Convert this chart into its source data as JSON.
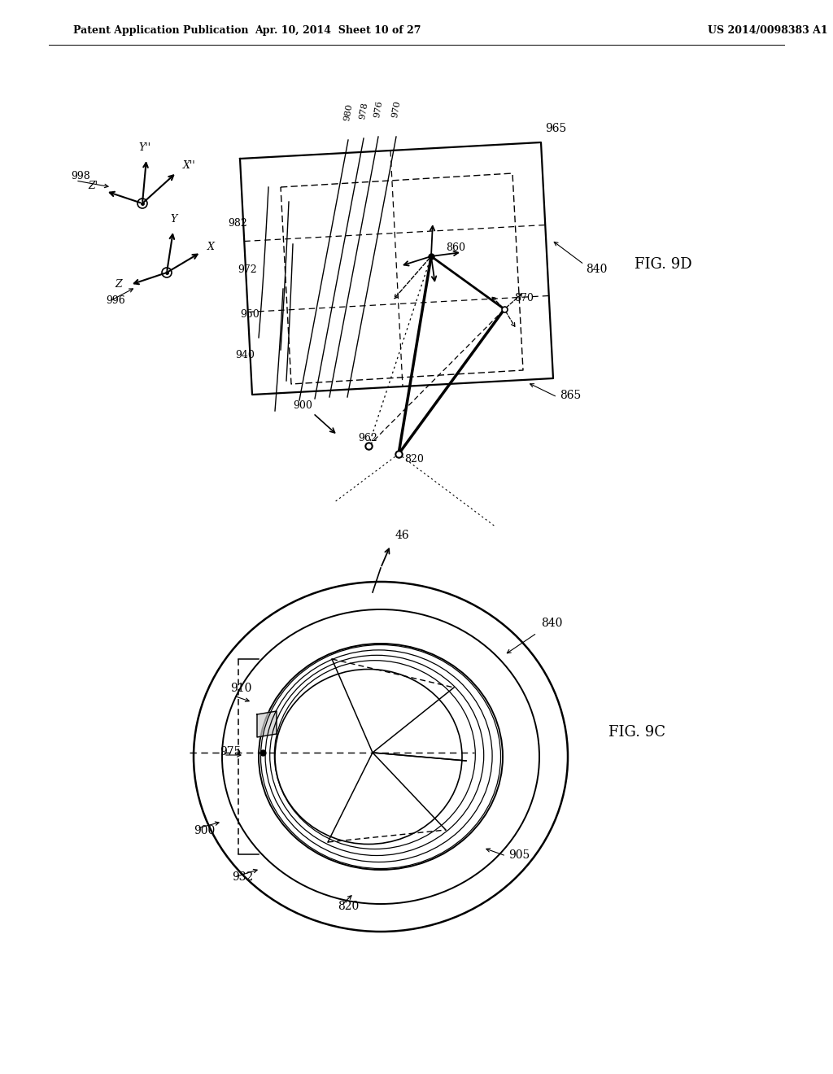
{
  "header_left": "Patent Application Publication",
  "header_center": "Apr. 10, 2014  Sheet 10 of 27",
  "header_right": "US 2014/0098383 A1",
  "fig_top_label": "FIG. 9D",
  "fig_bottom_label": "FIG. 9C",
  "bg_color": "#ffffff",
  "line_color": "#000000"
}
